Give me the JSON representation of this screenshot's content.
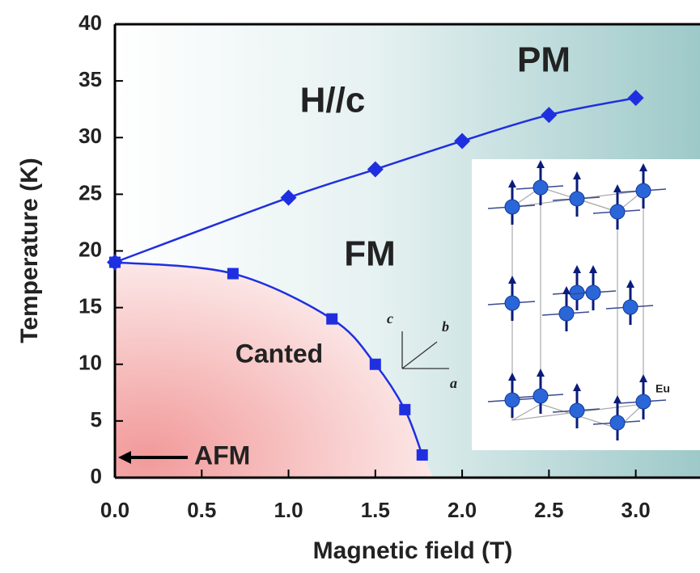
{
  "chart_data": {
    "type": "line",
    "xlabel": "Magnetic field (T)",
    "ylabel": "Temperature (K)",
    "xlim": [
      0,
      3.37
    ],
    "ylim": [
      0,
      40
    ],
    "xticks": [
      {
        "value": 0,
        "label": "0.0"
      },
      {
        "value": 0.5,
        "label": "0.5"
      },
      {
        "value": 1,
        "label": "1.0"
      },
      {
        "value": 1.5,
        "label": "1.5"
      },
      {
        "value": 2,
        "label": "2.0"
      },
      {
        "value": 2.5,
        "label": "2.5"
      },
      {
        "value": 3,
        "label": "3.0"
      }
    ],
    "yticks": [
      0,
      5,
      10,
      15,
      20,
      25,
      30,
      35,
      40
    ],
    "series": [
      {
        "color": "#1f2fe0",
        "marker": "diamond",
        "x": [
          0,
          1.0,
          1.5,
          2.0,
          2.5,
          3.0
        ],
        "values": [
          19,
          24.7,
          27.2,
          29.7,
          32,
          33.5
        ]
      },
      {
        "color": "#1f2fe0",
        "marker": "square",
        "x": [
          0,
          0.68,
          1.25,
          1.5,
          1.67,
          1.77
        ],
        "values": [
          19,
          18,
          14,
          10,
          6,
          2
        ]
      }
    ],
    "annotations": [
      "PM",
      "H//c",
      "FM",
      "Canted",
      "AFM"
    ],
    "inset": {
      "axes": [
        "c",
        "b",
        "a"
      ],
      "atom": "Eu"
    }
  }
}
